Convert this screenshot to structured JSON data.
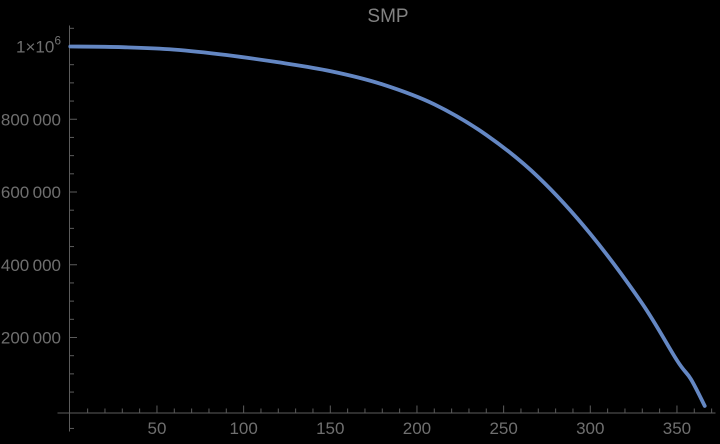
{
  "title": "SMP",
  "colors": {
    "background": "#000000",
    "curve": "#6487C3",
    "axis": "#5C5C5C",
    "tick_label": "#6F6F6F",
    "title_color": "#828282"
  },
  "chart_data": {
    "type": "line",
    "title": "SMP",
    "xlabel": "",
    "ylabel": "",
    "xlim": [
      0,
      365
    ],
    "ylim": [
      0,
      1000000
    ],
    "grid": false,
    "legend": false,
    "x_major_ticks": [
      50,
      100,
      150,
      200,
      250,
      300,
      350
    ],
    "x_tick_labels": [
      "50",
      "100",
      "150",
      "200",
      "250",
      "300",
      "350"
    ],
    "x_minor_step": 10,
    "x_minor_max": 370,
    "y_major_ticks": [
      200000,
      400000,
      600000,
      800000,
      1000000
    ],
    "y_tick_labels": [
      "200 000",
      "400 000",
      "600 000",
      "800 000",
      "1×10^6"
    ],
    "y_top_label": {
      "base": "1×10",
      "exponent": "6"
    },
    "y_minor_step": 50000,
    "y_minor_min": -50000,
    "y_minor_max": 1050000,
    "series": [
      {
        "name": "SMP",
        "color": "#6487C3",
        "points": [
          [
            0,
            1000000
          ],
          [
            30,
            998200
          ],
          [
            60,
            991500
          ],
          [
            90,
            976500
          ],
          [
            120,
            956500
          ],
          [
            150,
            932500
          ],
          [
            180,
            896000
          ],
          [
            210,
            841000
          ],
          [
            240,
            757000
          ],
          [
            270,
            641000
          ],
          [
            300,
            485000
          ],
          [
            330,
            293000
          ],
          [
            350,
            137000
          ],
          [
            358,
            86000
          ],
          [
            366,
            12000
          ]
        ]
      }
    ]
  }
}
